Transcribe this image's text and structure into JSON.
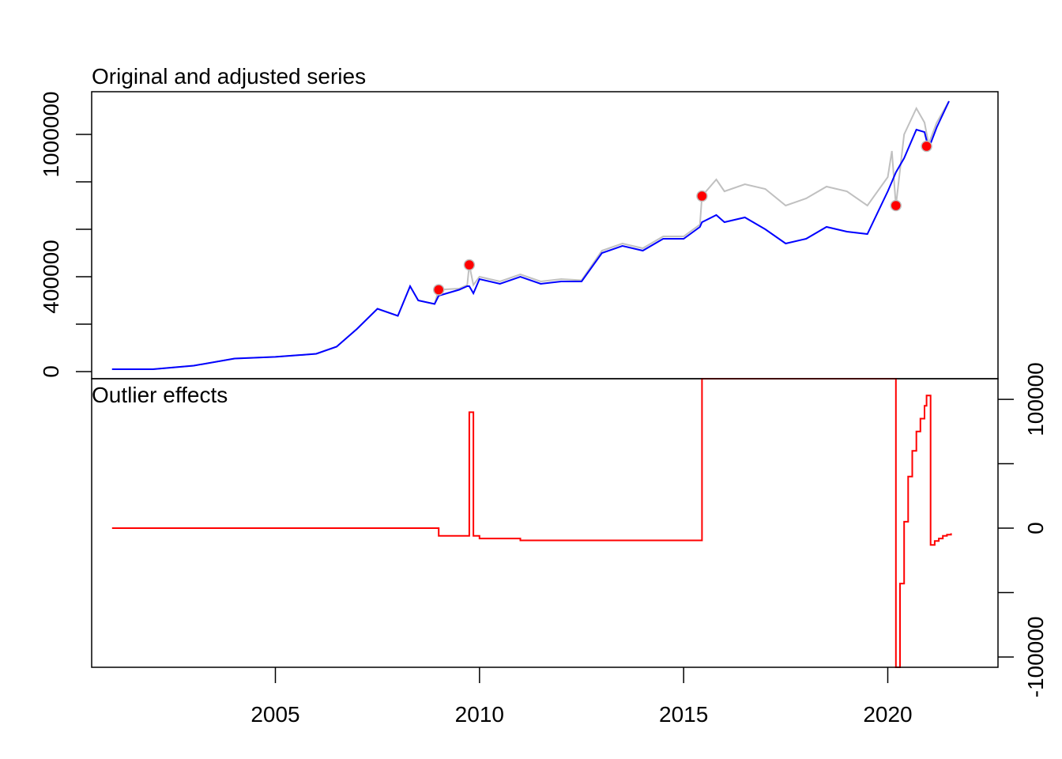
{
  "chart_data": [
    {
      "type": "line",
      "title": "Original and adjusted series",
      "xlabel": "",
      "ylabel": "",
      "xlim": [
        2000.5,
        2022.7
      ],
      "ylim": [
        -30000,
        1180000
      ],
      "y_ticks": [
        0,
        200000,
        400000,
        600000,
        800000,
        1000000
      ],
      "y_tick_labels": [
        "0",
        "",
        "400000",
        "",
        "",
        "1000000"
      ],
      "grid": false,
      "series": [
        {
          "role": "original",
          "color": "#c0c0c0",
          "points": [
            [
              2001.0,
              10000
            ],
            [
              2002.0,
              10000
            ],
            [
              2003.0,
              25000
            ],
            [
              2004.0,
              55000
            ],
            [
              2005.0,
              62000
            ],
            [
              2006.0,
              75000
            ],
            [
              2006.5,
              105000
            ],
            [
              2007.0,
              180000
            ],
            [
              2007.5,
              265000
            ],
            [
              2008.0,
              235000
            ],
            [
              2008.3,
              360000
            ],
            [
              2008.5,
              300000
            ],
            [
              2008.9,
              285000
            ],
            [
              2009.0,
              345000
            ],
            [
              2009.5,
              350000
            ],
            [
              2009.7,
              365000
            ],
            [
              2009.75,
              450000
            ],
            [
              2009.85,
              365000
            ],
            [
              2010.0,
              400000
            ],
            [
              2010.5,
              380000
            ],
            [
              2011.0,
              410000
            ],
            [
              2011.5,
              380000
            ],
            [
              2012.0,
              390000
            ],
            [
              2012.5,
              385000
            ],
            [
              2013.0,
              510000
            ],
            [
              2013.5,
              540000
            ],
            [
              2014.0,
              520000
            ],
            [
              2014.5,
              570000
            ],
            [
              2015.0,
              570000
            ],
            [
              2015.4,
              620000
            ],
            [
              2015.45,
              740000
            ],
            [
              2015.8,
              810000
            ],
            [
              2016.0,
              760000
            ],
            [
              2016.5,
              790000
            ],
            [
              2017.0,
              770000
            ],
            [
              2017.5,
              700000
            ],
            [
              2018.0,
              730000
            ],
            [
              2018.5,
              780000
            ],
            [
              2019.0,
              760000
            ],
            [
              2019.5,
              700000
            ],
            [
              2020.0,
              820000
            ],
            [
              2020.1,
              930000
            ],
            [
              2020.2,
              700000
            ],
            [
              2020.4,
              1000000
            ],
            [
              2020.7,
              1110000
            ],
            [
              2020.9,
              1050000
            ],
            [
              2021.0,
              960000
            ],
            [
              2021.2,
              1050000
            ],
            [
              2021.5,
              1140000
            ]
          ]
        },
        {
          "role": "adjusted",
          "color": "#0000ff",
          "points": [
            [
              2001.0,
              10000
            ],
            [
              2002.0,
              10000
            ],
            [
              2003.0,
              25000
            ],
            [
              2004.0,
              55000
            ],
            [
              2005.0,
              62000
            ],
            [
              2006.0,
              75000
            ],
            [
              2006.5,
              105000
            ],
            [
              2007.0,
              180000
            ],
            [
              2007.5,
              265000
            ],
            [
              2008.0,
              235000
            ],
            [
              2008.3,
              360000
            ],
            [
              2008.5,
              300000
            ],
            [
              2008.9,
              285000
            ],
            [
              2009.0,
              320000
            ],
            [
              2009.5,
              345000
            ],
            [
              2009.7,
              360000
            ],
            [
              2009.75,
              360000
            ],
            [
              2009.85,
              330000
            ],
            [
              2010.0,
              390000
            ],
            [
              2010.5,
              370000
            ],
            [
              2011.0,
              400000
            ],
            [
              2011.5,
              370000
            ],
            [
              2012.0,
              380000
            ],
            [
              2012.5,
              380000
            ],
            [
              2013.0,
              500000
            ],
            [
              2013.5,
              530000
            ],
            [
              2014.0,
              510000
            ],
            [
              2014.5,
              560000
            ],
            [
              2015.0,
              560000
            ],
            [
              2015.4,
              610000
            ],
            [
              2015.45,
              630000
            ],
            [
              2015.8,
              660000
            ],
            [
              2016.0,
              630000
            ],
            [
              2016.5,
              650000
            ],
            [
              2017.0,
              600000
            ],
            [
              2017.5,
              540000
            ],
            [
              2018.0,
              560000
            ],
            [
              2018.5,
              610000
            ],
            [
              2019.0,
              590000
            ],
            [
              2019.5,
              580000
            ],
            [
              2020.0,
              760000
            ],
            [
              2020.1,
              800000
            ],
            [
              2020.2,
              840000
            ],
            [
              2020.4,
              900000
            ],
            [
              2020.7,
              1020000
            ],
            [
              2020.9,
              1010000
            ],
            [
              2021.0,
              940000
            ],
            [
              2021.2,
              1030000
            ],
            [
              2021.5,
              1140000
            ]
          ]
        }
      ],
      "outlier_points": {
        "color": "#ff0000",
        "points": [
          [
            2009.0,
            345000
          ],
          [
            2009.75,
            450000
          ],
          [
            2015.45,
            740000
          ],
          [
            2020.2,
            700000
          ],
          [
            2020.95,
            950000
          ]
        ]
      }
    },
    {
      "type": "line",
      "title": "Outlier effects",
      "xlabel": "",
      "ylabel": "",
      "xlim": [
        2000.5,
        2022.7
      ],
      "ylim": [
        -108000,
        116000
      ],
      "x_ticks": [
        2005,
        2010,
        2015,
        2020
      ],
      "x_tick_labels": [
        "2005",
        "2010",
        "2015",
        "2020"
      ],
      "y_ticks": [
        -100000,
        -50000,
        0,
        50000,
        100000
      ],
      "y_tick_labels": [
        "-100000",
        "",
        "0",
        "",
        "100000"
      ],
      "grid": false,
      "series": [
        {
          "role": "outlier-effects",
          "color": "#ff0000",
          "steps": [
            [
              2001.0,
              0
            ],
            [
              2009.0,
              -6000
            ],
            [
              2009.75,
              90000
            ],
            [
              2009.85,
              -6000
            ],
            [
              2010.0,
              -8000
            ],
            [
              2011.0,
              -9500
            ],
            [
              2015.45,
              116000
            ],
            [
              2020.2,
              -108000
            ],
            [
              2020.3,
              -43000
            ],
            [
              2020.4,
              5000
            ],
            [
              2020.5,
              40000
            ],
            [
              2020.6,
              60000
            ],
            [
              2020.7,
              75000
            ],
            [
              2020.8,
              85000
            ],
            [
              2020.9,
              95000
            ],
            [
              2020.95,
              103000
            ],
            [
              2021.05,
              -13000
            ],
            [
              2021.15,
              -10000
            ],
            [
              2021.25,
              -8000
            ],
            [
              2021.35,
              -6000
            ],
            [
              2021.45,
              -5000
            ],
            [
              2021.55,
              -4000
            ]
          ]
        }
      ]
    }
  ],
  "style": {
    "original_color": "#c0c0c0",
    "adjusted_color": "#0000ff",
    "outlier_color": "#ff0000",
    "marker_outline": "#c0c0c0"
  }
}
